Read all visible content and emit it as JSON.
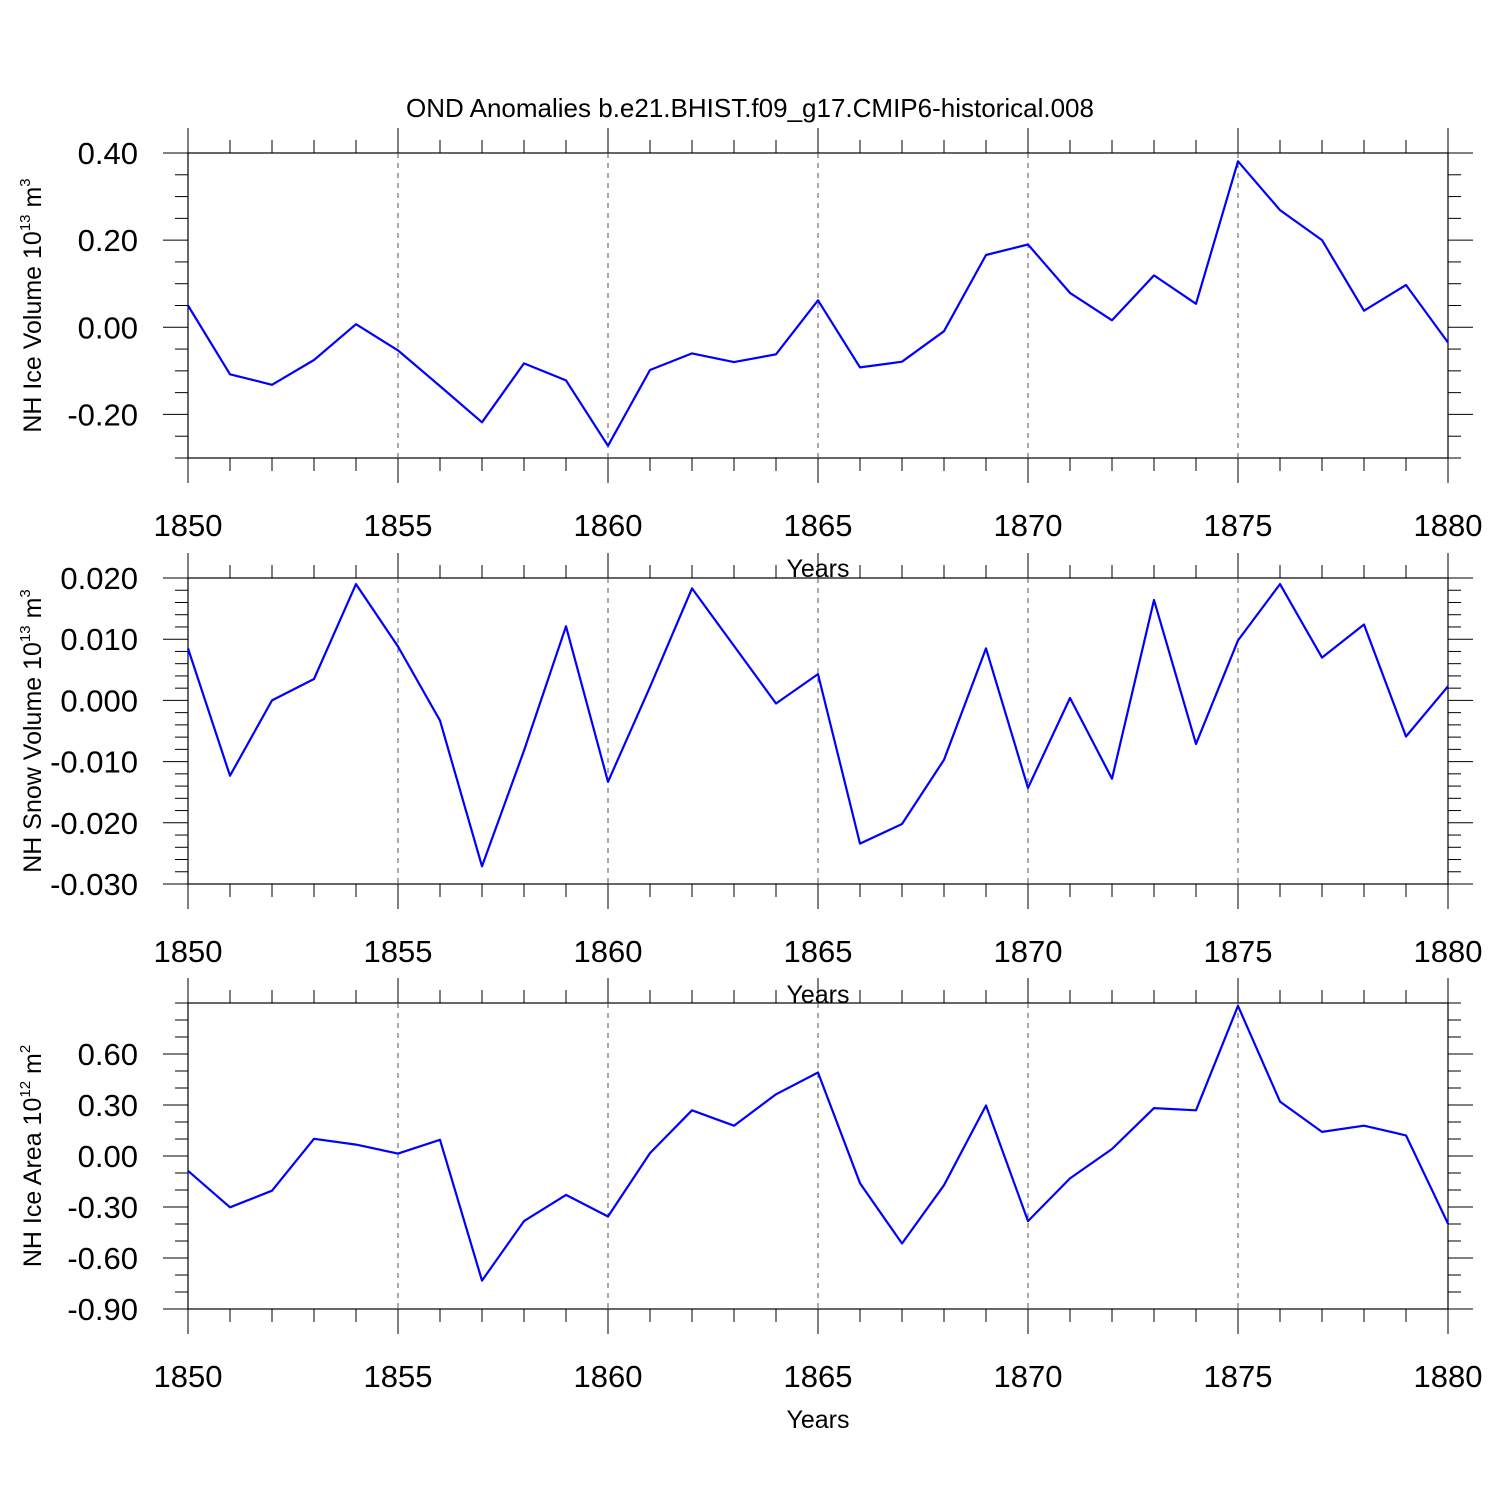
{
  "title": "OND Anomalies b.e21.BHIST.f09_g17.CMIP6-historical.008",
  "chart_data": [
    {
      "type": "line",
      "title": "OND Anomalies b.e21.BHIST.f09_g17.CMIP6-historical.008",
      "xlabel": "Years",
      "ylabel": "NH Ice Volume 10",
      "ylabel_exp": "13",
      "ylabel_unit": "m",
      "ylabel_unit_exp": "3",
      "xlim": [
        1850,
        1880
      ],
      "ylim": [
        -0.3,
        0.4
      ],
      "xticks": [
        1850,
        1855,
        1860,
        1865,
        1870,
        1875,
        1880
      ],
      "xtick_labels": [
        "1850",
        "1855",
        "1860",
        "1865",
        "1870",
        "1875",
        "1880"
      ],
      "yticks": [
        -0.2,
        0.0,
        0.2,
        0.4
      ],
      "ytick_labels": [
        "-0.20",
        "0.00",
        "0.20",
        "0.40"
      ],
      "minor_ystep": 0.05,
      "line_color": "#0000ff",
      "x": [
        1850,
        1851,
        1852,
        1853,
        1854,
        1855,
        1856,
        1857,
        1858,
        1859,
        1860,
        1861,
        1862,
        1863,
        1864,
        1865,
        1866,
        1867,
        1868,
        1869,
        1870,
        1871,
        1872,
        1873,
        1874,
        1875,
        1876,
        1877,
        1878,
        1879,
        1880
      ],
      "series": [
        {
          "name": "NH Ice Volume",
          "values": [
            0.05,
            -0.108,
            -0.132,
            -0.075,
            0.007,
            -0.053,
            -0.135,
            -0.218,
            -0.083,
            -0.122,
            -0.272,
            -0.098,
            -0.06,
            -0.08,
            -0.062,
            0.062,
            -0.092,
            -0.079,
            -0.009,
            0.166,
            0.19,
            0.079,
            0.016,
            0.119,
            0.054,
            0.381,
            0.269,
            0.2,
            0.038,
            0.097,
            -0.035
          ]
        }
      ]
    },
    {
      "type": "line",
      "xlabel": "Years",
      "ylabel": "NH Snow Volume 10",
      "ylabel_exp": "13",
      "ylabel_unit": "m",
      "ylabel_unit_exp": "3",
      "xlim": [
        1850,
        1880
      ],
      "ylim": [
        -0.03,
        0.02
      ],
      "xticks": [
        1850,
        1855,
        1860,
        1865,
        1870,
        1875,
        1880
      ],
      "xtick_labels": [
        "1850",
        "1855",
        "1860",
        "1865",
        "1870",
        "1875",
        "1880"
      ],
      "yticks": [
        -0.03,
        -0.02,
        -0.01,
        0.0,
        0.01,
        0.02
      ],
      "ytick_labels": [
        "-0.030",
        "-0.020",
        "-0.010",
        "0.000",
        "0.010",
        "0.020"
      ],
      "minor_ystep": 0.002,
      "line_color": "#0000ff",
      "x": [
        1850,
        1851,
        1852,
        1853,
        1854,
        1855,
        1856,
        1857,
        1858,
        1859,
        1860,
        1861,
        1862,
        1863,
        1864,
        1865,
        1866,
        1867,
        1868,
        1869,
        1870,
        1871,
        1872,
        1873,
        1874,
        1875,
        1876,
        1877,
        1878,
        1879,
        1880
      ],
      "series": [
        {
          "name": "NH Snow Volume",
          "values": [
            0.0085,
            -0.0123,
            0.0,
            0.0035,
            0.019,
            0.0088,
            -0.0033,
            -0.0271,
            -0.0082,
            0.0121,
            -0.0133,
            0.0022,
            0.0183,
            0.0089,
            -0.0005,
            0.0043,
            -0.0234,
            -0.0202,
            -0.0097,
            0.0085,
            -0.0143,
            0.0004,
            -0.0128,
            0.0164,
            -0.0071,
            0.0098,
            0.019,
            0.007,
            0.0124,
            -0.0059,
            0.0023
          ]
        }
      ]
    },
    {
      "type": "line",
      "xlabel": "Years",
      "ylabel": "NH Ice Area 10",
      "ylabel_exp": "12",
      "ylabel_unit": "m",
      "ylabel_unit_exp": "2",
      "xlim": [
        1850,
        1880
      ],
      "ylim": [
        -0.9,
        0.9
      ],
      "xticks": [
        1850,
        1855,
        1860,
        1865,
        1870,
        1875,
        1880
      ],
      "xtick_labels": [
        "1850",
        "1855",
        "1860",
        "1865",
        "1870",
        "1875",
        "1880"
      ],
      "yticks": [
        -0.9,
        -0.6,
        -0.3,
        0.0,
        0.3,
        0.6
      ],
      "ytick_labels": [
        "-0.90",
        "-0.60",
        "-0.30",
        "0.00",
        "0.30",
        "0.60"
      ],
      "minor_ystep": 0.1,
      "line_color": "#0000ff",
      "x": [
        1850,
        1851,
        1852,
        1853,
        1854,
        1855,
        1856,
        1857,
        1858,
        1859,
        1860,
        1861,
        1862,
        1863,
        1864,
        1865,
        1866,
        1867,
        1868,
        1869,
        1870,
        1871,
        1872,
        1873,
        1874,
        1875,
        1876,
        1877,
        1878,
        1879,
        1880
      ],
      "series": [
        {
          "name": "NH Ice Area",
          "values": [
            -0.087,
            -0.302,
            -0.204,
            0.101,
            0.067,
            0.014,
            0.095,
            -0.733,
            -0.383,
            -0.229,
            -0.356,
            0.017,
            0.269,
            0.178,
            0.363,
            0.491,
            -0.16,
            -0.515,
            -0.172,
            0.297,
            -0.383,
            -0.132,
            0.041,
            0.282,
            0.269,
            0.883,
            0.32,
            0.142,
            0.178,
            0.121,
            -0.398
          ]
        }
      ]
    }
  ]
}
